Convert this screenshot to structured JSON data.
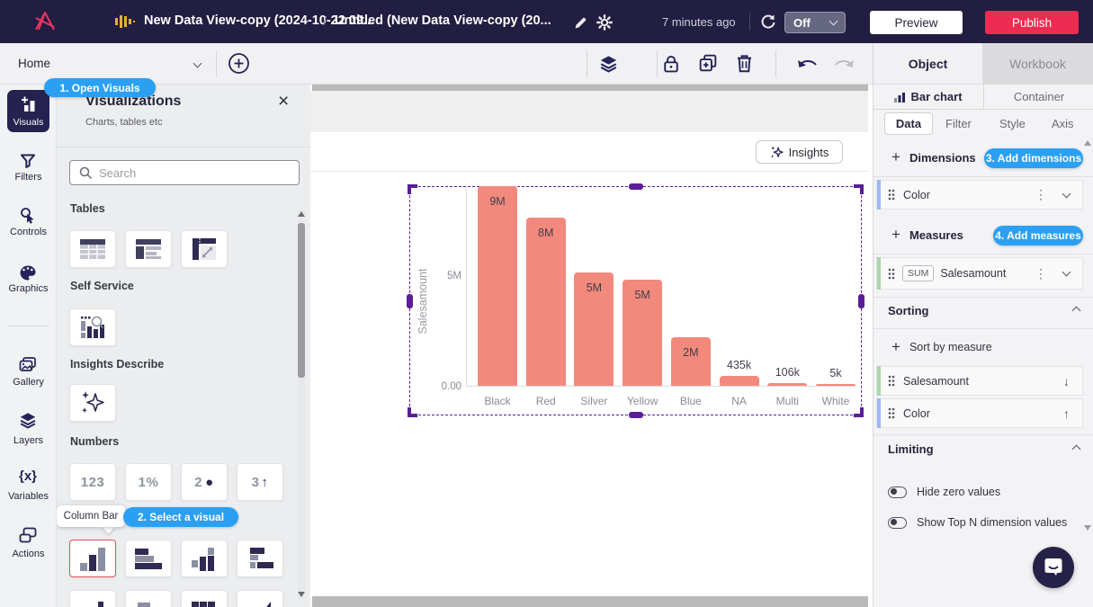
{
  "topbar": {
    "breadcrumb_parent": "New Data View-copy (2024-10-22 09...",
    "breadcrumb_separator": "/",
    "breadcrumb_current": "Untitled (New Data View-copy (20...",
    "last_saved": "7 minutes ago",
    "refresh_select_value": "Off",
    "preview_label": "Preview",
    "publish_label": "Publish"
  },
  "toolbar": {
    "page_selector_label": "Home",
    "object_tab": "Object",
    "workbook_tab": "Workbook"
  },
  "sidebar": {
    "items": [
      {
        "label": "Visuals"
      },
      {
        "label": "Filters"
      },
      {
        "label": "Controls"
      },
      {
        "label": "Graphics"
      },
      {
        "label": "Gallery"
      },
      {
        "label": "Layers"
      },
      {
        "label": "Variables"
      },
      {
        "label": "Actions"
      }
    ]
  },
  "visuals_panel": {
    "open_badge": "1. Open Visuals",
    "select_badge": "2. Select a visual",
    "title": "Visualizations",
    "subtitle": "Charts, tables etc",
    "search_placeholder": "Search",
    "section_tables": "Tables",
    "section_self_service": "Self Service",
    "section_insights": "Insights Describe",
    "section_numbers": "Numbers",
    "numbers_items": [
      {
        "num": "123",
        "glyph": ""
      },
      {
        "num": "1",
        "glyph": "%"
      },
      {
        "num": "2",
        "glyph": "●"
      },
      {
        "num": "3",
        "glyph": "↑"
      }
    ],
    "tooltip_label": "Column Bar"
  },
  "canvas": {
    "insights_button": "Insights"
  },
  "chart_data": {
    "type": "bar",
    "title": "",
    "categories": [
      "Black",
      "Red",
      "Silver",
      "Yellow",
      "Blue",
      "NA",
      "Multi",
      "White"
    ],
    "values": [
      9000000,
      7600000,
      5100000,
      4800000,
      2200000,
      435000,
      106000,
      5000
    ],
    "value_labels": [
      "9M",
      "8M",
      "5M",
      "5M",
      "2M",
      "435k",
      "106k",
      "5k"
    ],
    "xlabel": "",
    "ylabel": "Salesamount",
    "yticks": [
      {
        "label": "5M",
        "value": 5000000
      },
      {
        "label": "0.00",
        "value": 0
      }
    ],
    "ylim": [
      0,
      9000000
    ],
    "bar_color": "#f2897d",
    "grid": false,
    "legend": false
  },
  "inspector": {
    "object_type_tab": "Bar chart",
    "container_tab": "Container",
    "tabs": [
      {
        "label": "Data"
      },
      {
        "label": "Filter"
      },
      {
        "label": "Style"
      },
      {
        "label": "Axis"
      }
    ],
    "dimensions_label": "Dimensions",
    "add_dimensions_badge": "3. Add dimensions",
    "dimension_row_label": "Color",
    "measures_label": "Measures",
    "add_measures_badge": "4. Add measures",
    "measure_agg": "SUM",
    "measure_label": "Salesamount",
    "sorting_label": "Sorting",
    "sort_by_measure_label": "Sort by measure",
    "sort_rows": [
      {
        "label": "Salesamount",
        "direction": "desc"
      },
      {
        "label": "Color",
        "direction": "asc"
      }
    ],
    "limiting_label": "Limiting",
    "hide_zero_label": "Hide zero values",
    "top_n_label": "Show Top N dimension values"
  }
}
